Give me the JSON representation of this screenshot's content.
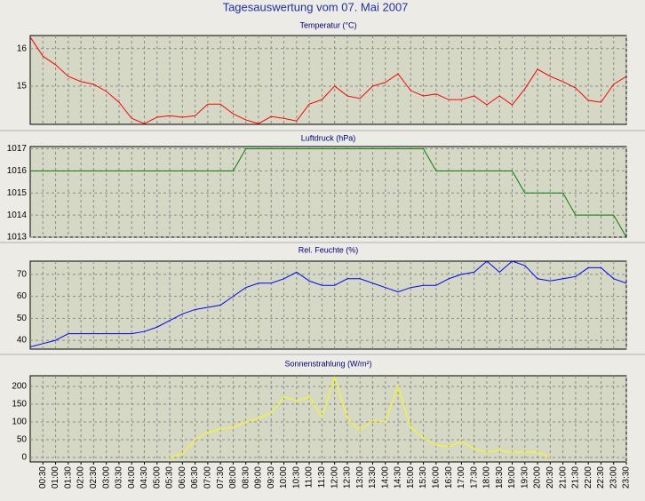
{
  "title": "Tagesauswertung vom 07. Mai 2007",
  "chart_data": [
    {
      "type": "line",
      "title": "Temperatur (°C)",
      "color": "#ff0000",
      "categories": [
        null,
        "00:30",
        "01:00",
        "01:30",
        "02:00",
        "02:30",
        "03:00",
        "03:30",
        "04:00",
        "04:30",
        "05:00",
        "05:30",
        "06:00",
        "06:30",
        "07:00",
        "07:30",
        "08:00",
        "08:30",
        "09:00",
        "09:30",
        "10:00",
        "10:30",
        "11:00",
        "11:30",
        "12:00",
        "12:30",
        "13:00",
        "13:30",
        "14:00",
        "14:30",
        "15:00",
        "15:30",
        "16:00",
        "16:30",
        "17:00",
        "17:30",
        "18:00",
        "18:30",
        "19:00",
        "19:30",
        "20:00",
        "20:30",
        "21:00",
        "21:30",
        "22:00",
        "22:30",
        "23:00",
        "23:30"
      ],
      "values": [
        16.31,
        15.8,
        15.57,
        15.26,
        15.12,
        15.05,
        14.86,
        14.57,
        14.14,
        14.0,
        14.17,
        14.21,
        14.17,
        14.21,
        14.52,
        14.52,
        14.26,
        14.1,
        14.0,
        14.19,
        14.14,
        14.07,
        14.52,
        14.64,
        15.0,
        14.74,
        14.67,
        15.0,
        15.1,
        15.33,
        14.88,
        14.74,
        14.79,
        14.64,
        14.64,
        14.74,
        14.5,
        14.74,
        14.5,
        14.93,
        15.45,
        15.26,
        15.12,
        14.95,
        14.62,
        14.57,
        15.05,
        15.26
      ],
      "ylim": [
        13.98,
        16.35
      ],
      "yticks": [
        15,
        16
      ],
      "grid": true
    },
    {
      "type": "line",
      "title": "Luftdruck (hPa)",
      "color": "#008000",
      "categories": [
        null,
        "00:30",
        "01:00",
        "01:30",
        "02:00",
        "02:30",
        "03:00",
        "03:30",
        "04:00",
        "04:30",
        "05:00",
        "05:30",
        "06:00",
        "06:30",
        "07:00",
        "07:30",
        "08:00",
        "08:30",
        "09:00",
        "09:30",
        "10:00",
        "10:30",
        "11:00",
        "11:30",
        "12:00",
        "12:30",
        "13:00",
        "13:30",
        "14:00",
        "14:30",
        "15:00",
        "15:30",
        "16:00",
        "16:30",
        "17:00",
        "17:30",
        "18:00",
        "18:30",
        "19:00",
        "19:30",
        "20:00",
        "20:30",
        "21:00",
        "21:30",
        "22:00",
        "22:30",
        "23:00",
        "23:30"
      ],
      "values": [
        1016,
        1016,
        1016,
        1016,
        1016,
        1016,
        1016,
        1016,
        1016,
        1016,
        1016,
        1016,
        1016,
        1016,
        1016,
        1016,
        1016,
        1017,
        1017,
        1017,
        1017,
        1017,
        1017,
        1017,
        1017,
        1017,
        1017,
        1017,
        1017,
        1017,
        1017,
        1017,
        1016,
        1016,
        1016,
        1016,
        1016,
        1016,
        1016,
        1015,
        1015,
        1015,
        1015,
        1014,
        1014,
        1014,
        1014,
        1013
      ],
      "ylim": [
        1013,
        1017.1
      ],
      "yticks": [
        1013,
        1014,
        1015,
        1016,
        1017
      ],
      "grid": true
    },
    {
      "type": "line",
      "title": "Rel. Feuchte (%)",
      "color": "#0000ff",
      "categories": [
        null,
        "00:30",
        "01:00",
        "01:30",
        "02:00",
        "02:30",
        "03:00",
        "03:30",
        "04:00",
        "04:30",
        "05:00",
        "05:30",
        "06:00",
        "06:30",
        "07:00",
        "07:30",
        "08:00",
        "08:30",
        "09:00",
        "09:30",
        "10:00",
        "10:30",
        "11:00",
        "11:30",
        "12:00",
        "12:30",
        "13:00",
        "13:30",
        "14:00",
        "14:30",
        "15:00",
        "15:30",
        "16:00",
        "16:30",
        "17:00",
        "17:30",
        "18:00",
        "18:30",
        "19:00",
        "19:30",
        "20:00",
        "20:30",
        "21:00",
        "21:30",
        "22:00",
        "22:30",
        "23:00",
        "23:30"
      ],
      "values": [
        37,
        38.5,
        40,
        43,
        43,
        43,
        43,
        43,
        43,
        44,
        46,
        49,
        52,
        54,
        55,
        56,
        60,
        64,
        66,
        66,
        68,
        71,
        67,
        65,
        65,
        68,
        68,
        66,
        64,
        62,
        64,
        65,
        65,
        68,
        70,
        71,
        76,
        71,
        76,
        74,
        68,
        67,
        68,
        69,
        73,
        73,
        68,
        66
      ],
      "ylim": [
        36,
        76
      ],
      "yticks": [
        40,
        50,
        60,
        70
      ],
      "grid": true
    },
    {
      "type": "line",
      "title": "Sonnenstrahlung (W/m²)",
      "color": "#ffff00",
      "categories": [
        null,
        "00:30",
        "01:00",
        "01:30",
        "02:00",
        "02:30",
        "03:00",
        "03:30",
        "04:00",
        "04:30",
        "05:00",
        "05:30",
        "06:00",
        "06:30",
        "07:00",
        "07:30",
        "08:00",
        "08:30",
        "09:00",
        "09:30",
        "10:00",
        "10:30",
        "11:00",
        "11:30",
        "12:00",
        "12:30",
        "13:00",
        "13:30",
        "14:00",
        "14:30",
        "15:00",
        "15:30",
        "16:00",
        "16:30",
        "17:00",
        "17:30",
        "18:00",
        "18:30",
        "19:00",
        "19:30",
        "20:00",
        "20:30",
        "21:00",
        "21:30",
        "22:00",
        "22:30",
        "23:00",
        "23:30"
      ],
      "values": [
        null,
        null,
        null,
        null,
        null,
        null,
        null,
        null,
        null,
        null,
        null,
        0,
        10,
        50,
        70,
        80,
        85,
        100,
        110,
        125,
        170,
        160,
        170,
        115,
        225,
        110,
        75,
        105,
        100,
        200,
        85,
        55,
        35,
        30,
        45,
        25,
        15,
        20,
        15,
        15,
        15,
        0,
        null,
        null,
        null,
        null,
        null,
        null
      ],
      "ylim": [
        -12.5,
        230
      ],
      "yticks": [
        0,
        50,
        100,
        150,
        200
      ],
      "grid": true
    }
  ]
}
